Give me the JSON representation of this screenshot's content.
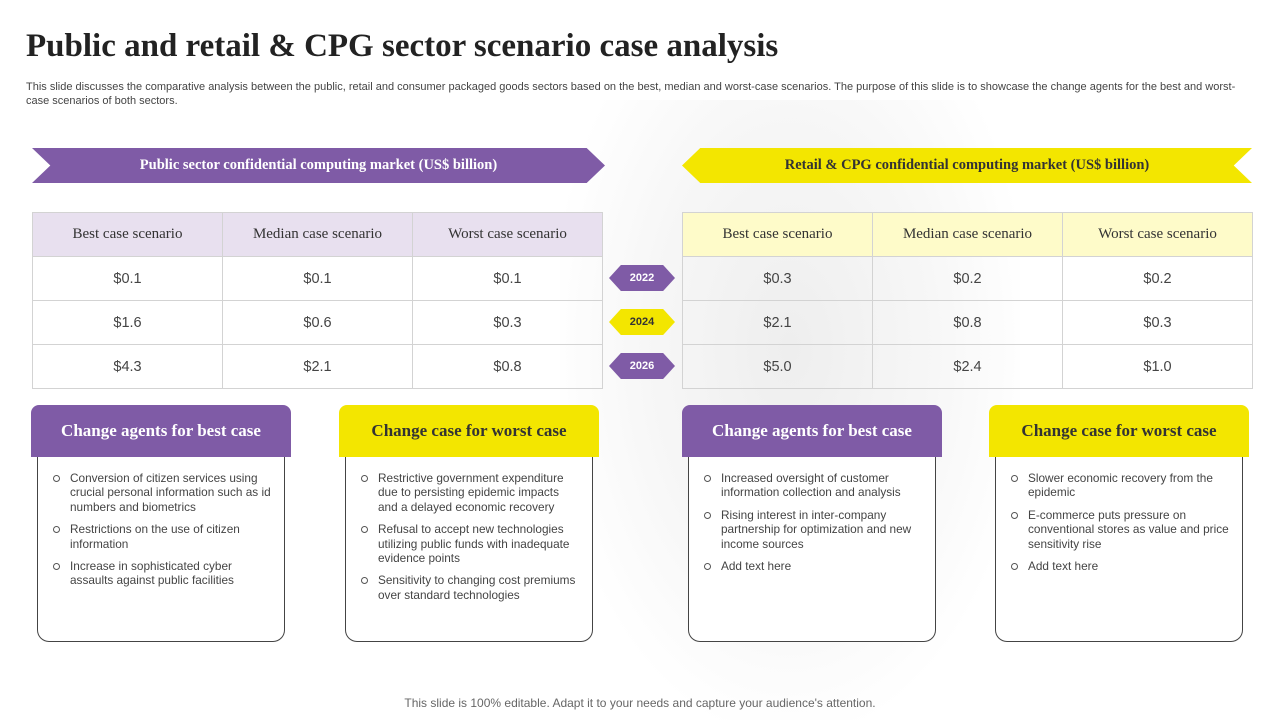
{
  "title": "Public and retail & CPG sector scenario case analysis",
  "subtitle": "This slide discusses the comparative analysis between the public, retail and consumer packaged goods sectors based on the best, median and worst-case scenarios. The purpose of this slide is to showcase the change agents for the best and worst-case scenarios of both sectors.",
  "colors": {
    "purple": "#7f5ba6",
    "yellow": "#f3e600"
  },
  "public": {
    "banner": "Public  sector confidential  computing  market  (US$ billion)",
    "headers": [
      "Best case scenario",
      "Median case scenario",
      "Worst  case scenario"
    ],
    "rows": [
      [
        "$0.1",
        "$0.1",
        "$0.1"
      ],
      [
        "$1.6",
        "$0.6",
        "$0.3"
      ],
      [
        "$4.3",
        "$2.1",
        "$0.8"
      ]
    ]
  },
  "retail": {
    "banner": "Retail & CPG  confidential  computing  market  (US$ billion)",
    "headers": [
      "Best case scenario",
      "Median case scenario",
      "Worst  case scenario"
    ],
    "rows": [
      [
        "$0.3",
        "$0.2",
        "$0.2"
      ],
      [
        "$2.1",
        "$0.8",
        "$0.3"
      ],
      [
        "$5.0",
        "$2.4",
        "$1.0"
      ]
    ]
  },
  "years": [
    "2022",
    "2024",
    "2026"
  ],
  "cards": [
    {
      "title": "Change agents for best case",
      "items": [
        "Conversion of citizen services using crucial personal information such as id numbers and biometrics",
        "Restrictions on the use of citizen information",
        "Increase in sophisticated cyber assaults against public facilities"
      ]
    },
    {
      "title": "Change case for worst case",
      "items": [
        "Restrictive government expenditure due to persisting epidemic impacts and a delayed economic recovery",
        "Refusal to accept new technologies utilizing public funds with inadequate evidence points",
        "Sensitivity to changing cost premiums over standard technologies"
      ]
    },
    {
      "title": "Change agents for best case",
      "items": [
        "Increased oversight of customer information collection and analysis",
        "Rising interest in inter-company partnership for optimization and new income sources",
        "Add text here"
      ]
    },
    {
      "title": "Change case for worst case",
      "items": [
        "Slower economic recovery from the epidemic",
        "E-commerce puts pressure on conventional stores as value and price sensitivity rise",
        "Add text here"
      ]
    }
  ],
  "footer": "This slide is 100% editable. Adapt it to your needs and capture your audience's attention."
}
